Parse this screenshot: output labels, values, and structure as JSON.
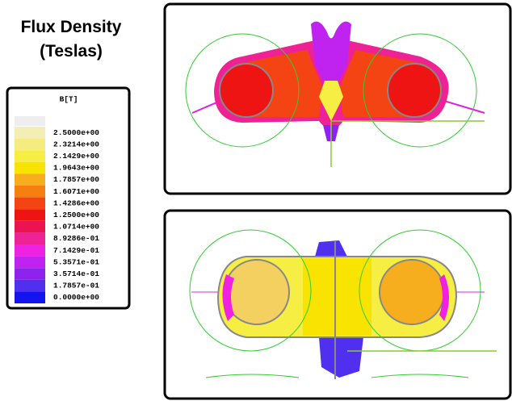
{
  "title_lines": [
    "Flux Density",
    "(Teslas)"
  ],
  "legend": {
    "title": "B[T]",
    "entries": [
      {
        "label": "2.5000e+00",
        "color": "#f3efb4"
      },
      {
        "label": "2.3214e+00",
        "color": "#f5ec80"
      },
      {
        "label": "2.1429e+00",
        "color": "#f7ee44"
      },
      {
        "label": "1.9643e+00",
        "color": "#f8e400"
      },
      {
        "label": "1.7857e+00",
        "color": "#f7ae1e"
      },
      {
        "label": "1.6071e+00",
        "color": "#f67f12"
      },
      {
        "label": "1.4286e+00",
        "color": "#f44414"
      },
      {
        "label": "1.2500e+00",
        "color": "#ee1414"
      },
      {
        "label": "1.0714e+00",
        "color": "#ec1450"
      },
      {
        "label": "8.9286e-01",
        "color": "#ee2294"
      },
      {
        "label": "7.1429e-01",
        "color": "#ee22e0"
      },
      {
        "label": "5.3571e-01",
        "color": "#c022f0"
      },
      {
        "label": "3.5714e-01",
        "color": "#8e22ee"
      },
      {
        "label": "1.7857e-01",
        "color": "#5030ee"
      },
      {
        "label": "0.0000e+00",
        "color": "#1414ee"
      }
    ]
  }
}
